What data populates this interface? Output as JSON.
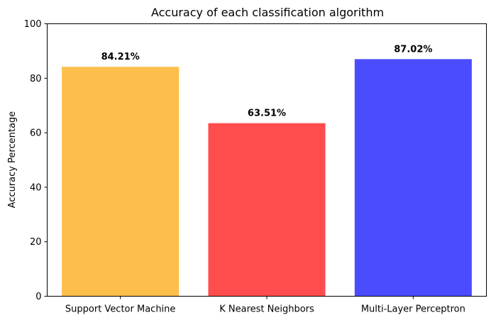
{
  "chart_data": {
    "type": "bar",
    "title": "Accuracy of each classification algorithm",
    "xlabel": "",
    "ylabel": "Accuracy Percentage",
    "categories": [
      "Support Vector Machine",
      "K Nearest Neighbors",
      "Multi-Layer Perceptron"
    ],
    "values": [
      84.21,
      63.51,
      87.02
    ],
    "data_labels": [
      "84.21%",
      "63.51%",
      "87.02%"
    ],
    "colors": [
      "#fdbe4c",
      "#ff4c4c",
      "#4c4cff"
    ],
    "ylim": [
      0,
      100
    ],
    "yticks": [
      0,
      20,
      40,
      60,
      80,
      100
    ],
    "grid": false,
    "legend": "none"
  }
}
